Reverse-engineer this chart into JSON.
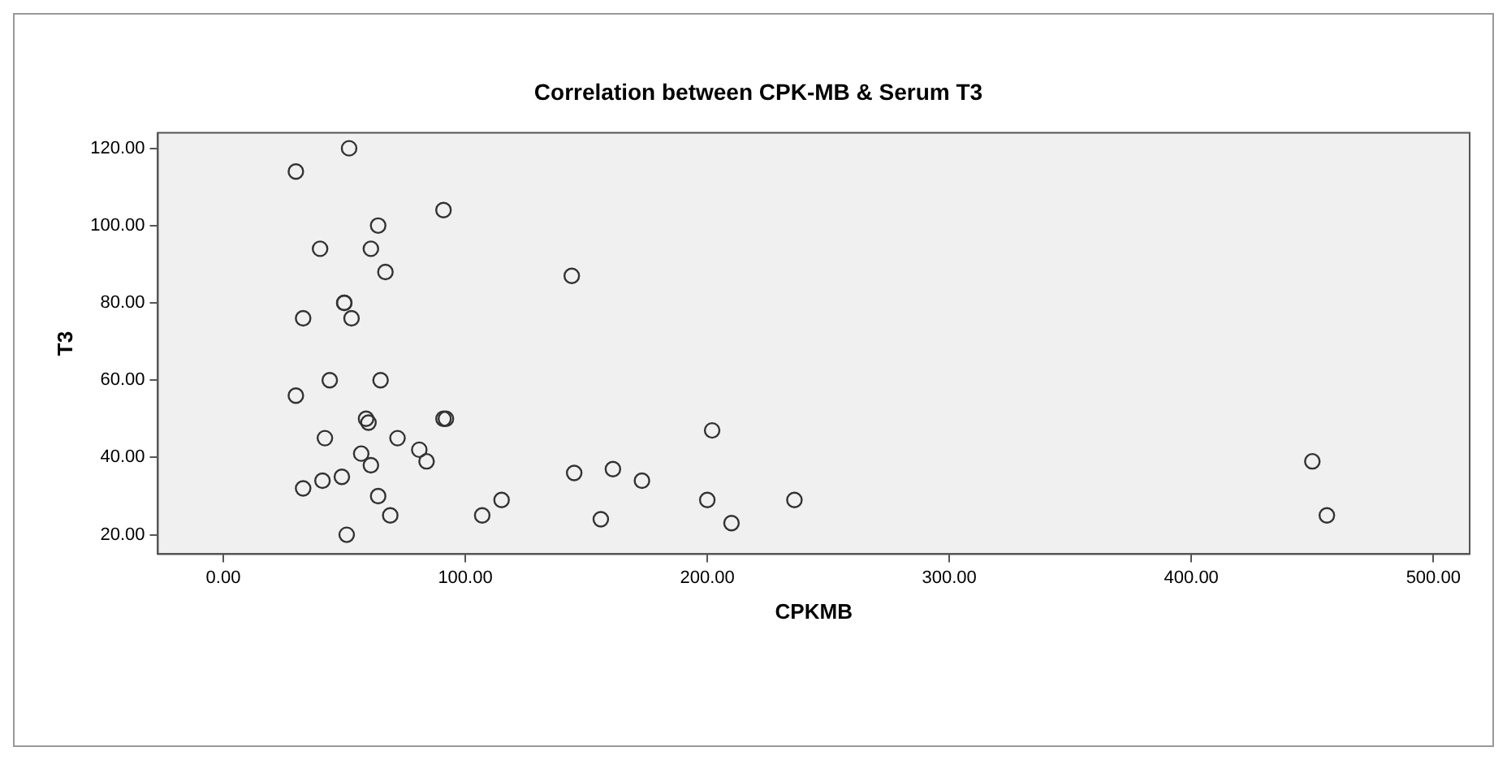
{
  "chart_data": {
    "type": "scatter",
    "title": "Correlation between CPK-MB & Serum T3",
    "xlabel": "CPKMB",
    "ylabel": "T3",
    "x": [
      52,
      30,
      91,
      64,
      40,
      61,
      67,
      144,
      50,
      50,
      33,
      53,
      30,
      44,
      65,
      59,
      60,
      91,
      92,
      42,
      72,
      57,
      81,
      84,
      61,
      49,
      41,
      33,
      64,
      69,
      51,
      107,
      115,
      145,
      161,
      173,
      156,
      200,
      202,
      210,
      236,
      450,
      456
    ],
    "series": [
      {
        "color": "#333333",
        "values": [
          120,
          114,
          104,
          100,
          94,
          94,
          88,
          87,
          80,
          80,
          76,
          76,
          56,
          60,
          60,
          50,
          49,
          50,
          50,
          45,
          45,
          41,
          42,
          39,
          38,
          35,
          34,
          32,
          30,
          25,
          20,
          25,
          29,
          36,
          37,
          34,
          24,
          29,
          47,
          23,
          29,
          39,
          25
        ]
      }
    ],
    "xlim": [
      -27,
      515
    ],
    "ylim": [
      15,
      124
    ],
    "xticks": [
      {
        "value": 0,
        "label": "0.00"
      },
      {
        "value": 100,
        "label": "100.00"
      },
      {
        "value": 200,
        "label": "200.00"
      },
      {
        "value": 300,
        "label": "300.00"
      },
      {
        "value": 400,
        "label": "400.00"
      },
      {
        "value": 500,
        "label": "500.00"
      }
    ],
    "yticks": [
      {
        "value": 20,
        "label": "20.00"
      },
      {
        "value": 40,
        "label": "40.00"
      },
      {
        "value": 60,
        "label": "60.00"
      },
      {
        "value": 80,
        "label": "80.00"
      },
      {
        "value": 100,
        "label": "100.00"
      },
      {
        "value": 120,
        "label": "120.00"
      }
    ],
    "grid": false,
    "legend": false,
    "marker": "circle"
  }
}
